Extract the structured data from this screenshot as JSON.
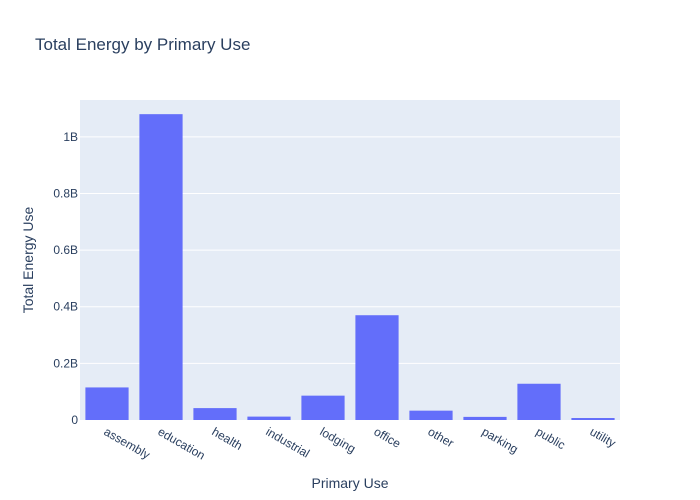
{
  "chart_data": {
    "type": "bar",
    "title": "Total Energy by Primary Use",
    "xlabel": "Primary Use",
    "ylabel": "Total Energy Use",
    "categories": [
      "assembly",
      "education",
      "health",
      "industrial",
      "lodging",
      "office",
      "other",
      "parking",
      "public",
      "utility"
    ],
    "values": [
      115000000,
      1080000000,
      42000000,
      12000000,
      86000000,
      370000000,
      33000000,
      11000000,
      128000000,
      7000000
    ],
    "ylim": [
      0,
      1130000000
    ],
    "yticks": [
      0,
      200000000,
      400000000,
      600000000,
      800000000,
      1000000000
    ],
    "ytick_labels": [
      "0",
      "0.2B",
      "0.4B",
      "0.6B",
      "0.8B",
      "1B"
    ],
    "grid": true,
    "colors": {
      "bar": "#636efa",
      "plot_bg": "#e5ecf6",
      "grid": "#ffffff",
      "text": "#2a3f5f"
    }
  }
}
